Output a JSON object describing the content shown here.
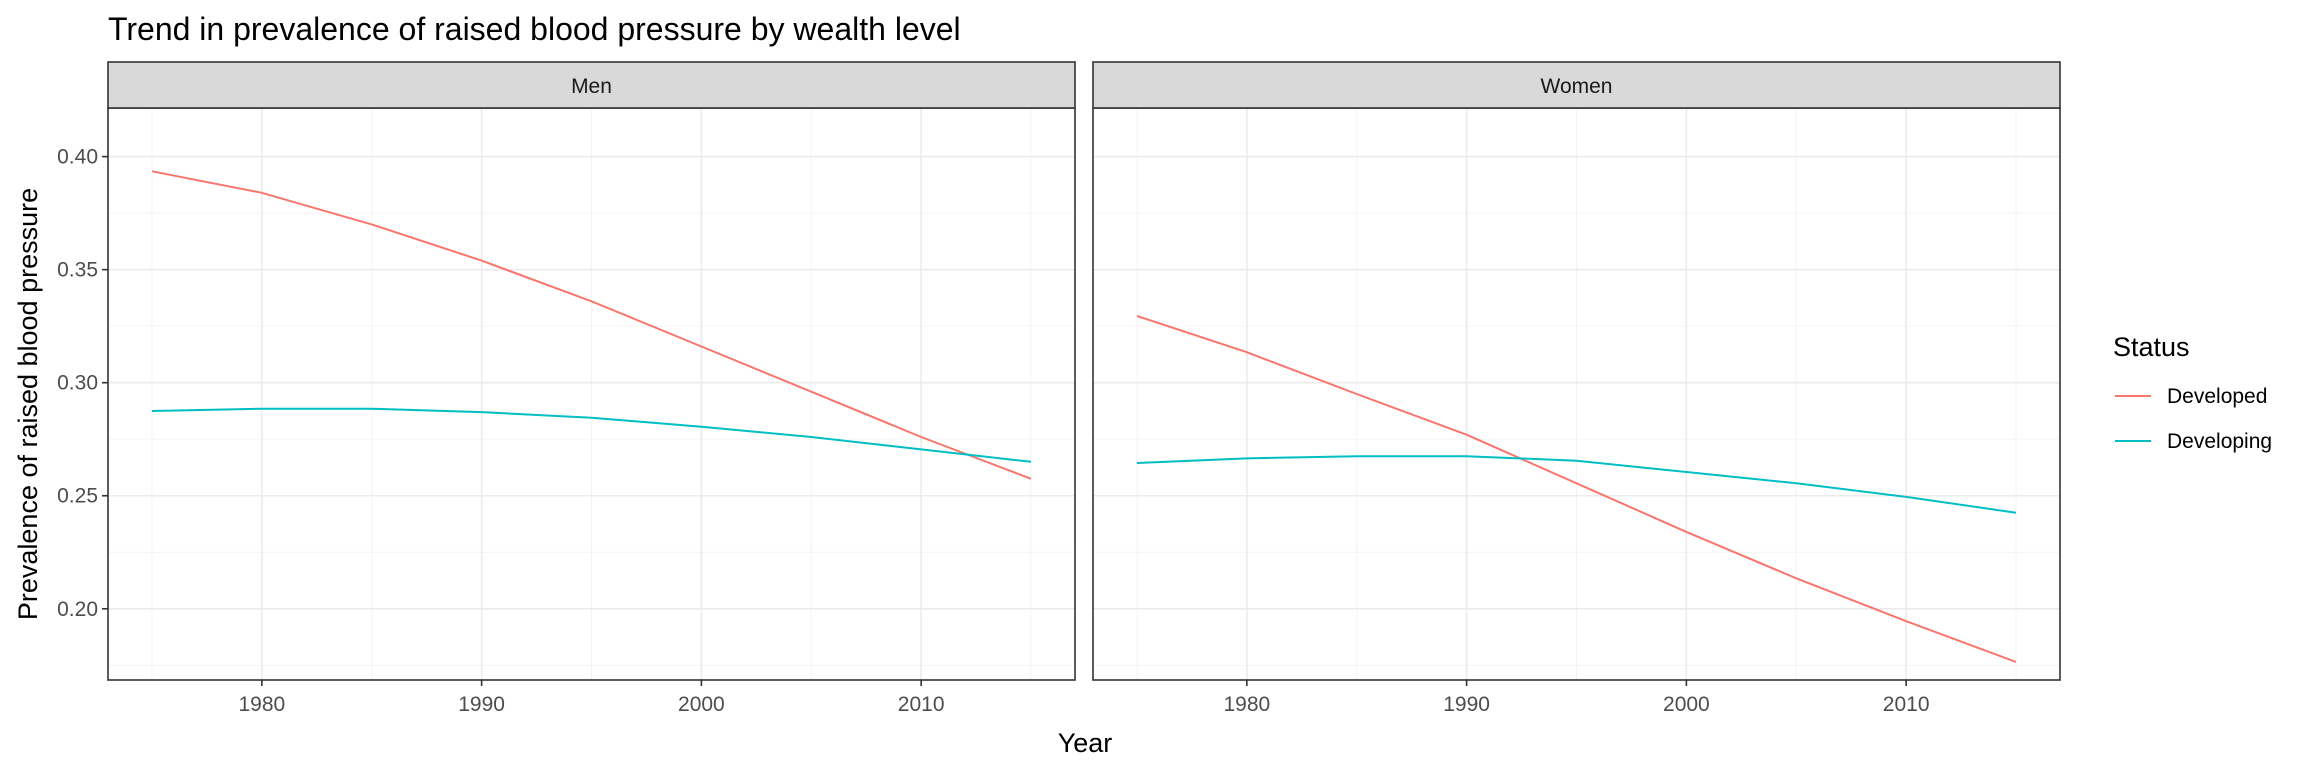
{
  "chart_data": {
    "type": "line",
    "title": "Trend in prevalence of raised blood pressure by wealth level",
    "xlabel": "Year",
    "ylabel": "Prevalence of raised blood pressure",
    "xlim": [
      1973.0,
      2017.0
    ],
    "ylim": [
      0.1685,
      0.4215
    ],
    "x_ticks": [
      1980,
      1990,
      2000,
      2010
    ],
    "y_ticks": [
      0.2,
      0.25,
      0.3,
      0.35,
      0.4
    ],
    "y_tick_labels": [
      "0.20",
      "0.25",
      "0.30",
      "0.35",
      "0.40"
    ],
    "grid": true,
    "legend": {
      "title": "Status",
      "position": "right",
      "entries": [
        "Developed",
        "Developing"
      ]
    },
    "colors": {
      "Developed": "#F8766D",
      "Developing": "#00BFC4"
    },
    "x": [
      1975,
      1980,
      1985,
      1990,
      1995,
      2000,
      2005,
      2010,
      2015
    ],
    "facets": [
      {
        "name": "Men",
        "series": [
          {
            "name": "Developed",
            "values": [
              0.3935,
              0.384,
              0.37,
              0.354,
              0.336,
              0.316,
              0.296,
              0.276,
              0.2575
            ]
          },
          {
            "name": "Developing",
            "values": [
              0.2875,
              0.2885,
              0.2885,
              0.287,
              0.2845,
              0.2805,
              0.276,
              0.2705,
              0.265
            ]
          }
        ]
      },
      {
        "name": "Women",
        "series": [
          {
            "name": "Developed",
            "values": [
              0.3295,
              0.3135,
              0.295,
              0.277,
              0.2555,
              0.234,
              0.2135,
              0.1945,
              0.1765
            ]
          },
          {
            "name": "Developing",
            "values": [
              0.2645,
              0.2665,
              0.2675,
              0.2675,
              0.2655,
              0.2605,
              0.2555,
              0.2495,
              0.2425
            ]
          }
        ]
      }
    ]
  }
}
